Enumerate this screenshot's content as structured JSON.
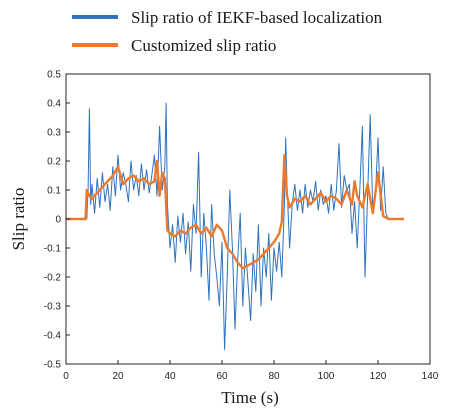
{
  "chart_data": {
    "type": "line",
    "title": "",
    "xlabel": "Time (s)",
    "ylabel": "Slip ratio",
    "xlim": [
      0,
      140
    ],
    "ylim": [
      -0.5,
      0.5
    ],
    "xticks": [
      0,
      20,
      40,
      60,
      80,
      100,
      120,
      140
    ],
    "yticks": [
      -0.5,
      -0.4,
      -0.3,
      -0.2,
      -0.1,
      0,
      0.1,
      0.2,
      0.3,
      0.4,
      0.5
    ],
    "grid": false,
    "legend_position": "top-outside",
    "series": [
      {
        "name": "Slip ratio of IEKF-based localization",
        "color": "#2f73bd",
        "x": [
          0,
          8,
          8.5,
          9,
          9.5,
          10,
          11,
          12,
          13,
          14,
          15,
          16,
          17,
          18,
          19,
          20,
          21,
          22,
          23,
          24,
          25,
          26,
          27,
          28,
          29,
          30,
          31,
          32,
          33,
          34,
          35,
          36,
          37,
          38,
          38.5,
          39,
          40,
          41,
          42,
          43,
          44,
          45,
          46,
          47,
          48,
          49,
          50,
          51,
          52,
          53,
          54,
          55,
          56,
          57,
          58,
          59,
          60,
          61,
          62,
          63,
          64,
          65,
          66,
          67,
          68,
          69,
          70,
          71,
          72,
          73,
          74,
          75,
          76,
          77,
          78,
          79,
          80,
          81,
          82,
          83,
          84,
          84.5,
          85,
          86,
          87,
          88,
          89,
          90,
          91,
          92,
          93,
          94,
          95,
          96,
          97,
          98,
          99,
          100,
          101,
          102,
          103,
          104,
          105,
          106,
          107,
          108,
          109,
          110,
          111,
          112,
          113,
          114,
          115,
          116,
          117,
          118,
          119,
          120,
          121,
          122,
          123,
          124,
          125,
          130
        ],
        "y": [
          0,
          0,
          0.1,
          0.38,
          0.05,
          0.12,
          0.02,
          0.14,
          0.04,
          0.16,
          0.06,
          0.12,
          0.03,
          0.18,
          0.08,
          0.22,
          0.1,
          0.16,
          0.12,
          0.06,
          0.2,
          0.1,
          0.15,
          0.08,
          0.19,
          0.1,
          0.17,
          0.09,
          0.15,
          0.22,
          0.08,
          0.32,
          0.1,
          0.18,
          0.4,
          0.05,
          -0.1,
          -0.02,
          -0.15,
          0.01,
          -0.08,
          0.02,
          -0.12,
          -0.01,
          -0.18,
          0.05,
          -0.05,
          0.23,
          -0.2,
          0.02,
          -0.1,
          -0.28,
          0.05,
          -0.12,
          -0.2,
          -0.3,
          -0.08,
          -0.45,
          -0.2,
          0.1,
          -0.1,
          -0.38,
          -0.15,
          0.02,
          -0.3,
          -0.1,
          -0.22,
          -0.35,
          -0.12,
          -0.25,
          -0.02,
          -0.3,
          -0.1,
          -0.2,
          -0.05,
          -0.28,
          -0.1,
          -0.18,
          -0.08,
          -0.2,
          0.05,
          0.28,
          0.12,
          -0.1,
          0.05,
          0.12,
          0.03,
          0.1,
          0.02,
          0.12,
          0.04,
          0.1,
          0.06,
          0.13,
          0.03,
          0.1,
          0.05,
          0.08,
          0.02,
          0.12,
          0.03,
          0.1,
          0.26,
          0.04,
          0.15,
          0.1,
          0.12,
          -0.05,
          0.06,
          -0.1,
          0.1,
          0.32,
          -0.2,
          0.08,
          0.36,
          0.02,
          0.08,
          0.28,
          0.03,
          0.18,
          0.02,
          0,
          0,
          0
        ]
      },
      {
        "name": "Customized slip ratio",
        "color": "#ec7a2e",
        "x": [
          0,
          7.5,
          8,
          9,
          10,
          12,
          14,
          16,
          18,
          20,
          22,
          24,
          26,
          28,
          30,
          32,
          34,
          35,
          36,
          37,
          38,
          39,
          40,
          42,
          44,
          46,
          48,
          50,
          52,
          54,
          56,
          58,
          60,
          62,
          64,
          66,
          68,
          70,
          72,
          74,
          76,
          78,
          80,
          82,
          83,
          84,
          85,
          86,
          88,
          90,
          92,
          94,
          96,
          98,
          100,
          102,
          104,
          106,
          108,
          110,
          111,
          112,
          114,
          116,
          118,
          120,
          122,
          124,
          130
        ],
        "y": [
          0,
          0,
          0.1,
          0.08,
          0.07,
          0.09,
          0.11,
          0.13,
          0.15,
          0.18,
          0.12,
          0.14,
          0.15,
          0.13,
          0.14,
          0.12,
          0.13,
          0.2,
          0.08,
          0.16,
          0.14,
          -0.04,
          -0.05,
          -0.06,
          -0.04,
          -0.05,
          -0.03,
          -0.02,
          -0.05,
          -0.03,
          -0.06,
          -0.02,
          -0.04,
          -0.1,
          -0.12,
          -0.15,
          -0.17,
          -0.16,
          -0.15,
          -0.14,
          -0.12,
          -0.1,
          -0.08,
          -0.05,
          -0.01,
          0.22,
          0.08,
          0.04,
          0.07,
          0.06,
          0.08,
          0.05,
          0.07,
          0.09,
          0.06,
          0.08,
          0.07,
          0.05,
          0.1,
          0.05,
          0.13,
          0.08,
          0.04,
          0.12,
          0.02,
          0.16,
          0.01,
          0,
          0
        ]
      }
    ]
  }
}
